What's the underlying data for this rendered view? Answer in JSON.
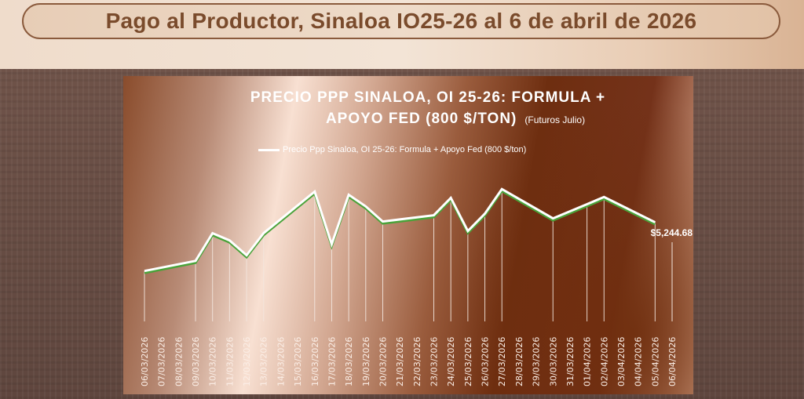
{
  "header": {
    "title": "Pago al Productor, Sinaloa IO25-26 al 6 de abril de 2026"
  },
  "colors": {
    "line": "#ffffff",
    "line_shadow": "#4aa33a",
    "title_text": "#7a4b2c"
  },
  "chart_data": {
    "type": "line",
    "title_line1": "PRECIO PPP SINALOA, OI 25-26: FORMULA +",
    "title_line2": "APOYO FED (800 $/TON)",
    "subtitle": "(Futuros Julio)",
    "xlabel": "",
    "ylabel": "",
    "grid": false,
    "legend_position": "top",
    "categories": [
      "06/03/2026",
      "07/03/2026",
      "08/03/2026",
      "09/03/2026",
      "10/03/2026",
      "11/03/2026",
      "12/03/2026",
      "13/03/2026",
      "14/03/2026",
      "15/03/2026",
      "16/03/2026",
      "17/03/2026",
      "18/03/2026",
      "19/03/2026",
      "20/03/2026",
      "21/03/2026",
      "22/03/2026",
      "23/03/2026",
      "24/03/2026",
      "25/03/2026",
      "26/03/2026",
      "27/03/2026",
      "28/03/2026",
      "29/03/2026",
      "30/03/2026",
      "31/03/2026",
      "01/04/2026",
      "02/04/2026",
      "03/04/2026",
      "04/04/2026",
      "05/04/2026",
      "06/04/2026"
    ],
    "series": [
      {
        "name": "Precio Ppp Sinaloa, OI 25-26: Formula + Apoyo Fed (800 $/ton)",
        "values": [
          5090,
          null,
          null,
          5122,
          5210,
          5187,
          5140,
          5210,
          null,
          null,
          5342,
          5175,
          5332,
          5295,
          5247,
          null,
          null,
          5267,
          5322,
          5217,
          5272,
          5350,
          null,
          null,
          5257,
          null,
          5302,
          5325,
          null,
          null,
          5244.68,
          null
        ]
      }
    ],
    "data_label": "$5,244.68",
    "ylim": [
      4930,
      5460
    ]
  }
}
